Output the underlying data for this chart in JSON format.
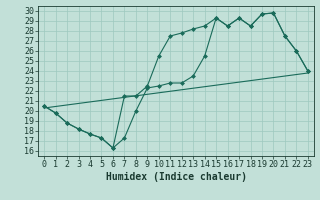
{
  "xlabel": "Humidex (Indice chaleur)",
  "bg_color": "#c2e0d8",
  "grid_color": "#9ec8bf",
  "line_color": "#1a6b5a",
  "xlim": [
    -0.5,
    23.5
  ],
  "ylim": [
    15.5,
    30.5
  ],
  "xticks": [
    0,
    1,
    2,
    3,
    4,
    5,
    6,
    7,
    8,
    9,
    10,
    11,
    12,
    13,
    14,
    15,
    16,
    17,
    18,
    19,
    20,
    21,
    22,
    23
  ],
  "yticks": [
    16,
    17,
    18,
    19,
    20,
    21,
    22,
    23,
    24,
    25,
    26,
    27,
    28,
    29,
    30
  ],
  "line1_x": [
    0,
    1,
    2,
    3,
    4,
    5,
    6,
    7,
    8,
    9,
    10,
    11,
    12,
    13,
    14,
    15,
    16,
    17,
    18,
    19,
    20,
    21,
    22,
    23
  ],
  "line1_y": [
    20.5,
    19.8,
    18.8,
    18.2,
    17.7,
    17.3,
    16.3,
    17.3,
    20.0,
    22.3,
    22.5,
    22.8,
    22.8,
    23.5,
    25.5,
    29.3,
    28.5,
    29.3,
    28.5,
    29.7,
    29.8,
    27.5,
    26.0,
    24.0
  ],
  "line2_x": [
    0,
    1,
    2,
    3,
    4,
    5,
    6,
    7,
    8,
    9,
    10,
    11,
    12,
    13,
    14,
    15,
    16,
    17,
    18,
    19,
    20,
    21,
    22,
    23
  ],
  "line2_y": [
    20.5,
    19.8,
    18.8,
    18.2,
    17.7,
    17.3,
    16.3,
    21.5,
    21.5,
    22.5,
    25.5,
    27.5,
    27.8,
    28.2,
    28.5,
    29.3,
    28.5,
    29.3,
    28.5,
    29.7,
    29.8,
    27.5,
    26.0,
    24.0
  ],
  "line3_x": [
    0,
    23
  ],
  "line3_y": [
    20.3,
    23.8
  ],
  "marker_size": 2.5,
  "font_size": 6
}
